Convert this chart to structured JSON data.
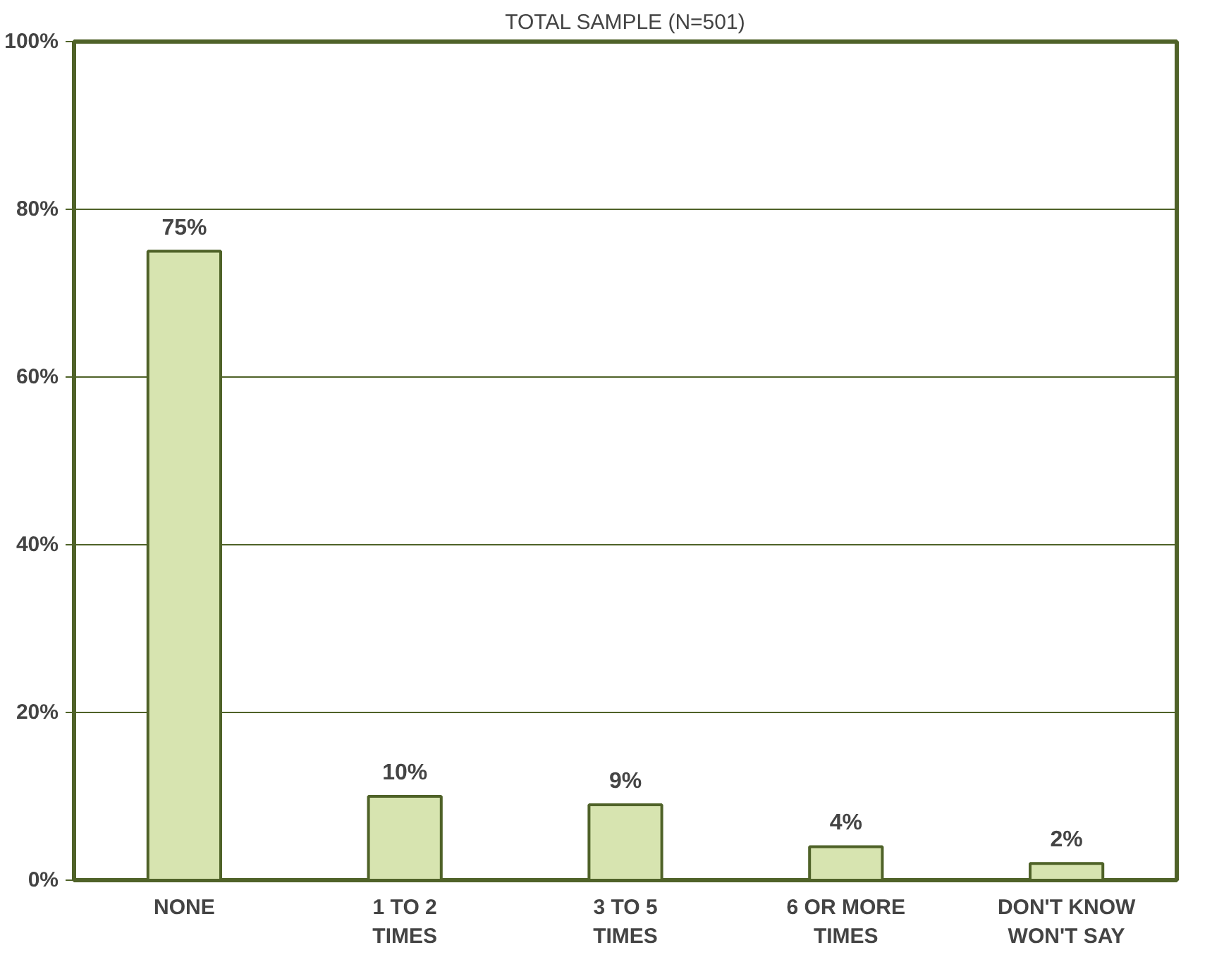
{
  "chart_data": {
    "type": "bar",
    "title": "TOTAL SAMPLE (N=501)",
    "categories": [
      "NONE",
      "1 TO 2\nTIMES",
      "3 TO 5\nTIMES",
      "6 OR MORE\nTIMES",
      "DON'T KNOW\nWON'T SAY"
    ],
    "values": [
      75,
      10,
      9,
      4,
      2
    ],
    "value_labels": [
      "75%",
      "10%",
      "9%",
      "4%",
      "2%"
    ],
    "color": "#d7e4b0",
    "ylim": [
      0,
      100
    ],
    "yticks": [
      {
        "value": 0,
        "label": "0%"
      },
      {
        "value": 20,
        "label": "20%"
      },
      {
        "value": 40,
        "label": "40%"
      },
      {
        "value": 60,
        "label": "60%"
      },
      {
        "value": 80,
        "label": "80%"
      },
      {
        "value": 100,
        "label": "100%"
      }
    ],
    "grid": "y"
  }
}
